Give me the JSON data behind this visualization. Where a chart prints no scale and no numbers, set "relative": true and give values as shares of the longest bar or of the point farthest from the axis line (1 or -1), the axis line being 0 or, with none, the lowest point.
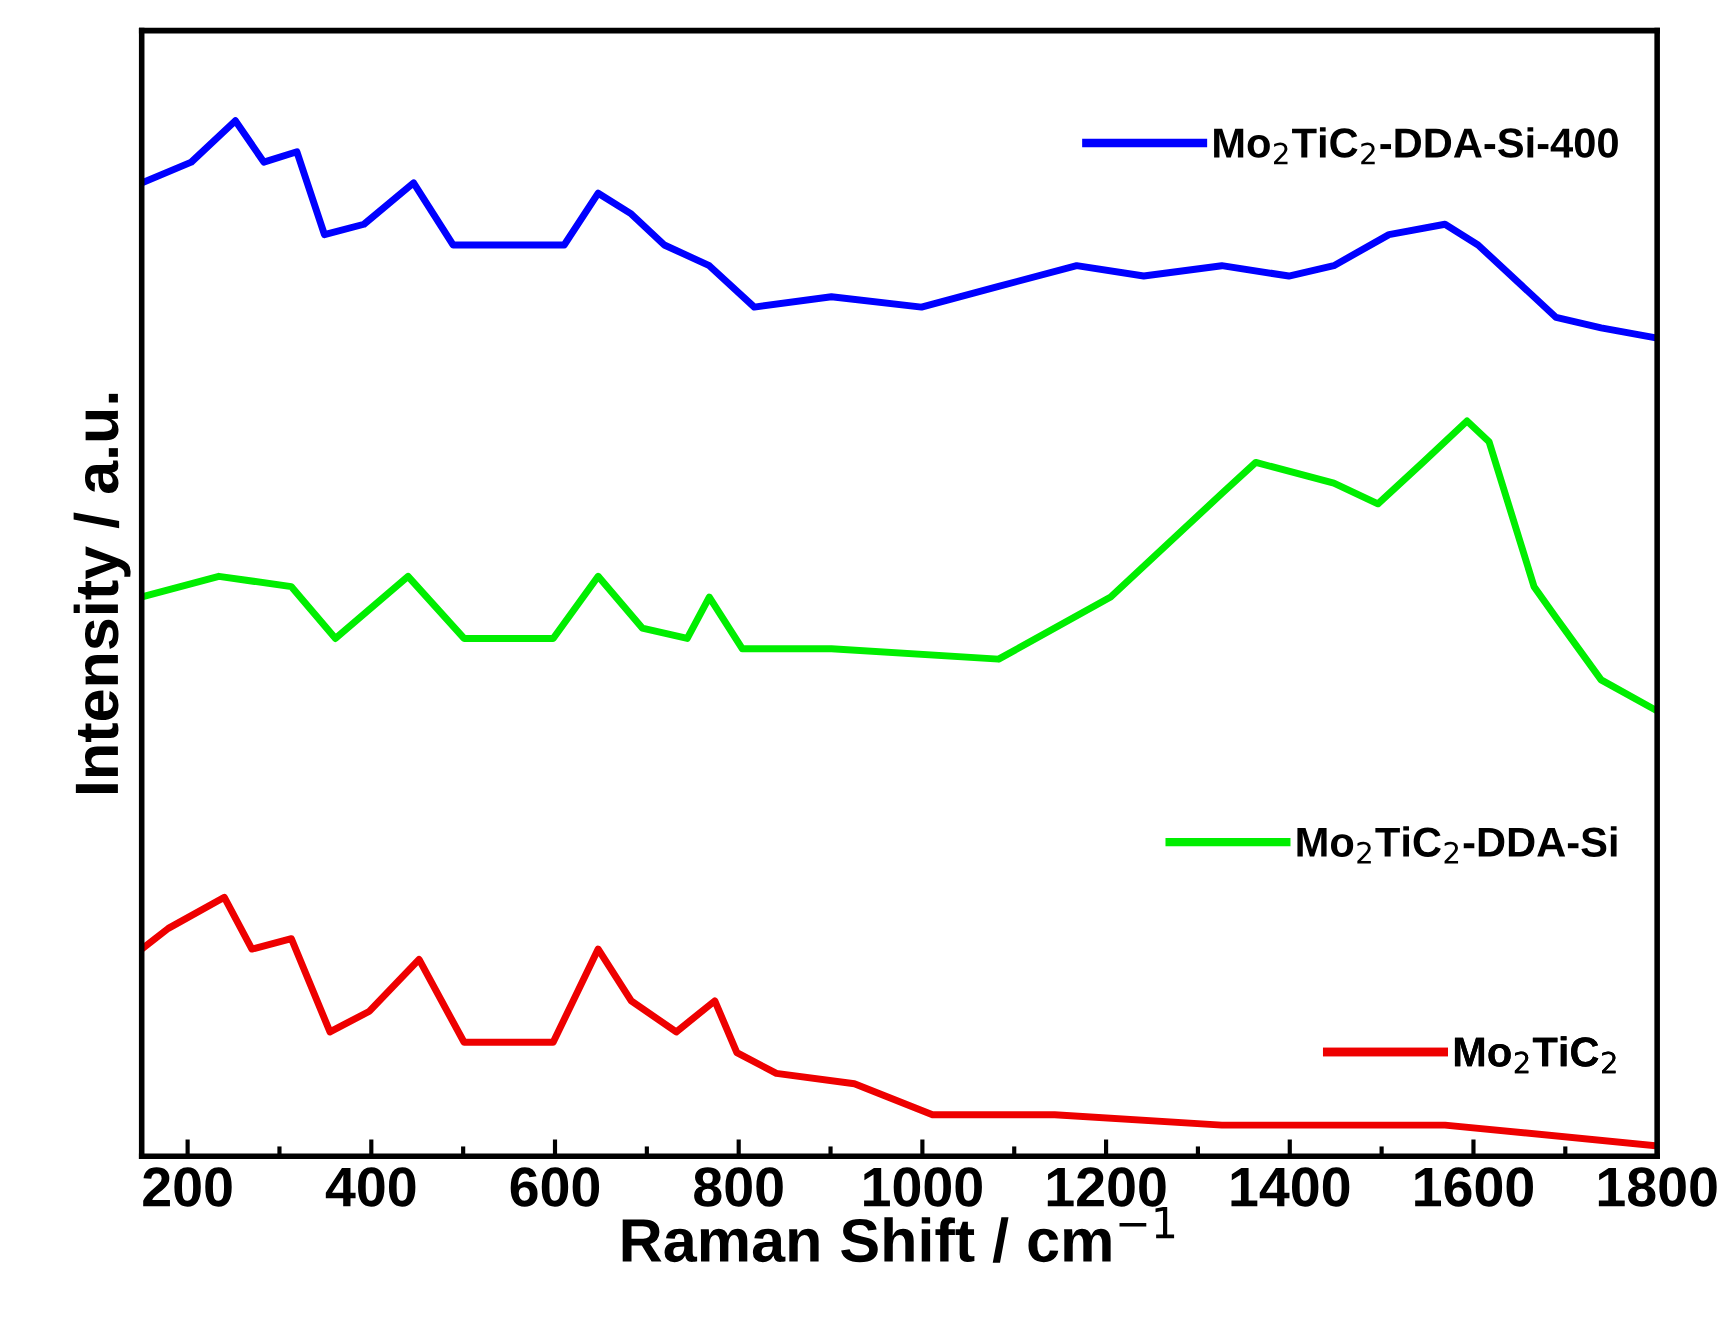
{
  "chart_data": {
    "type": "line",
    "xlabel": "Raman Shift / cm$^{−1}$",
    "ylabel": "Intensity / a.u.",
    "relative": true,
    "xlim": [
      150,
      1800
    ],
    "xticks": [
      200,
      {
        "value": 300,
        "label": null
      },
      400,
      {
        "value": 500,
        "label": null
      },
      600,
      {
        "value": 700,
        "label": null
      },
      800,
      {
        "value": 900,
        "label": null
      },
      1000,
      {
        "value": 1100,
        "label": null
      },
      1200,
      {
        "value": 1300,
        "label": null
      },
      1400,
      {
        "value": 1500,
        "label": null
      },
      1600,
      {
        "value": 1700,
        "label": null
      },
      1800
    ],
    "tick_labels": "x",
    "grid": false,
    "legend": "right",
    "marker": "none",
    "line_style": "solid",
    "series": [
      {
        "name": "Mo$_{2}$TiC$_{2}$-DDA-Si-400",
        "color": "#0000ff",
        "x": [
          150,
          204,
          252,
          283,
          319,
          349,
          392,
          446,
          489,
          550,
          610,
          647,
          683,
          719,
          768,
          817,
          901,
          999,
          1083,
          1168,
          1241,
          1326,
          1399,
          1448,
          1508,
          1569,
          1605,
          1690,
          1739,
          1800
        ],
        "values": [
          0.94,
          0.96,
          1.0,
          0.96,
          0.97,
          0.89,
          0.9,
          0.94,
          0.88,
          0.88,
          0.88,
          0.93,
          0.91,
          0.88,
          0.86,
          0.82,
          0.83,
          0.82,
          0.84,
          0.86,
          0.85,
          0.86,
          0.85,
          0.86,
          0.89,
          0.9,
          0.88,
          0.81,
          0.8,
          0.79
        ]
      },
      {
        "name": "Mo$_{2}$TiC$_{2}$-DDA-Si",
        "color": "#00ee00",
        "x": [
          150,
          234,
          313,
          361,
          440,
          501,
          598,
          647,
          695,
          744,
          768,
          804,
          901,
          1083,
          1205,
          1326,
          1363,
          1448,
          1496,
          1545,
          1593,
          1617,
          1666,
          1690,
          1739,
          1800
        ],
        "values": [
          0.54,
          0.56,
          0.55,
          0.5,
          0.56,
          0.5,
          0.5,
          0.56,
          0.51,
          0.5,
          0.54,
          0.49,
          0.49,
          0.48,
          0.54,
          0.64,
          0.67,
          0.65,
          0.63,
          0.67,
          0.71,
          0.69,
          0.55,
          0.52,
          0.46,
          0.43
        ]
      },
      {
        "name": "Mo$_{2}$TiC$_{2}$",
        "color": "#ee0000",
        "x": [
          150,
          179,
          240,
          270,
          313,
          355,
          398,
          452,
          501,
          598,
          647,
          683,
          732,
          774,
          798,
          841,
          926,
          1011,
          1144,
          1326,
          1569,
          1800
        ],
        "values": [
          0.2,
          0.22,
          0.25,
          0.2,
          0.21,
          0.12,
          0.14,
          0.19,
          0.11,
          0.11,
          0.2,
          0.15,
          0.12,
          0.15,
          0.1,
          0.08,
          0.07,
          0.04,
          0.04,
          0.03,
          0.03,
          0.01
        ]
      }
    ]
  }
}
